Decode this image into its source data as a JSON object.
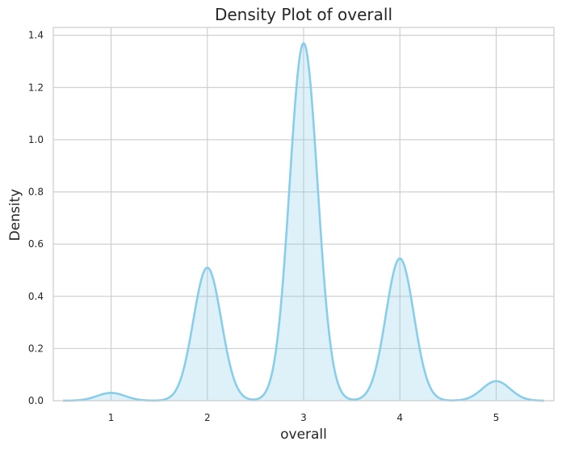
{
  "chart_data": {
    "type": "area",
    "kind": "kernel density estimate",
    "title": "Density Plot of overall",
    "xlabel": "overall",
    "ylabel": "Density",
    "xlim": [
      0.4,
      5.6
    ],
    "ylim": [
      0,
      1.43
    ],
    "x_ticks": [
      1,
      2,
      3,
      4,
      5
    ],
    "y_ticks": [
      0.0,
      0.2,
      0.4,
      0.6,
      0.8,
      1.0,
      1.2,
      1.4
    ],
    "x_tick_labels": [
      "1",
      "2",
      "3",
      "4",
      "5"
    ],
    "y_tick_labels": [
      "0.0",
      "0.2",
      "0.4",
      "0.6",
      "0.8",
      "1.0",
      "1.2",
      "1.4"
    ],
    "grid": true,
    "line_color": "#87ceeb",
    "fill_color": "#87ceeb",
    "fill_opacity": 0.28,
    "peaks": [
      {
        "x": 1,
        "density": 0.03
      },
      {
        "x": 2,
        "density": 0.51
      },
      {
        "x": 3,
        "density": 1.37
      },
      {
        "x": 4,
        "density": 0.545
      },
      {
        "x": 5,
        "density": 0.075
      }
    ],
    "x_range": [
      0.5,
      5.5
    ],
    "bandwidth": 0.145
  }
}
